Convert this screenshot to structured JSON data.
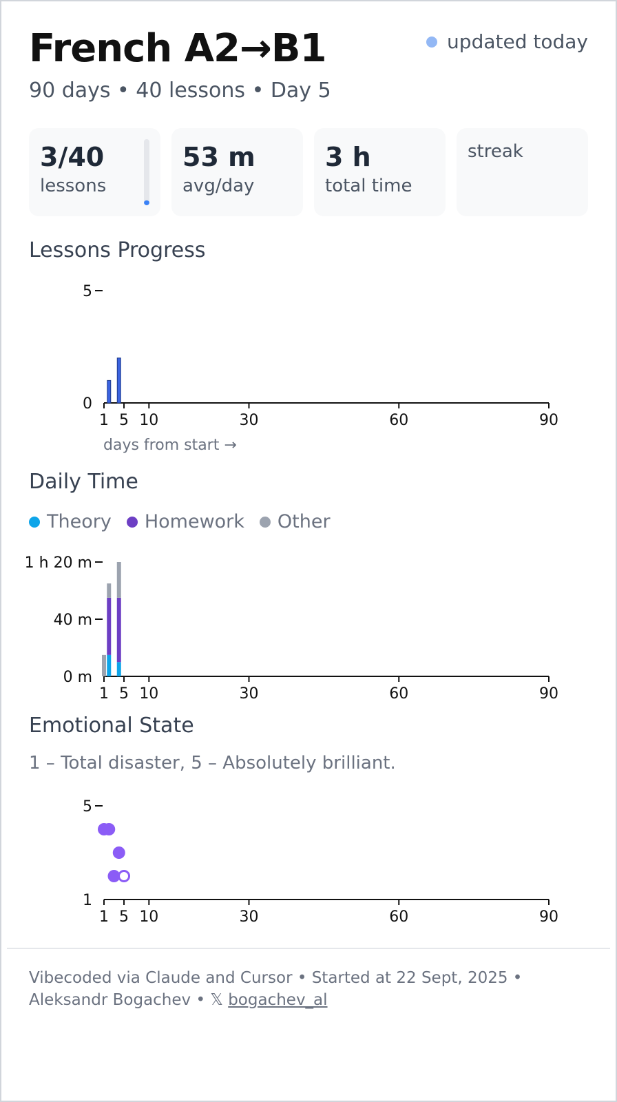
{
  "header": {
    "title": "French A2→B1",
    "subtitle": "90 days • 40 lessons • Day 5",
    "status": "updated today",
    "status_color": "#93b8f5"
  },
  "stats": {
    "lessons_value": "3/40",
    "lessons_label": "lessons",
    "lessons_progress": 0.075,
    "avg_value": "53 m",
    "avg_label": "avg/day",
    "total_value": "3 h",
    "total_label": "total time",
    "streak_label": "streak"
  },
  "sections": {
    "lessons_title": "Lessons Progress",
    "daily_title": "Daily Time",
    "emotion_title": "Emotional State",
    "emotion_note": "1 – Total disaster, 5 – Absolutely brilliant."
  },
  "legend": [
    {
      "label": "Theory",
      "color": "#0ea5e9"
    },
    {
      "label": "Homework",
      "color": "#6d3fc4"
    },
    {
      "label": "Other",
      "color": "#9ca3af"
    }
  ],
  "chart_data": [
    {
      "type": "bar",
      "x_ticks": [
        1,
        5,
        10,
        30,
        60,
        90
      ],
      "xlim": [
        1,
        90
      ],
      "y_ticks": [
        "0",
        "5"
      ],
      "ylim": [
        0,
        5
      ],
      "xlabel": "days from start →",
      "x": [
        2,
        4
      ],
      "values": [
        1,
        2
      ],
      "color": "#3b63e0"
    },
    {
      "type": "bar",
      "stacked": true,
      "x_ticks": [
        1,
        5,
        10,
        30,
        60,
        90
      ],
      "xlim": [
        1,
        90
      ],
      "y_ticks": [
        "0 m",
        "40 m",
        "1 h 20 m"
      ],
      "ylim": [
        0,
        80
      ],
      "x": [
        1,
        2,
        4
      ],
      "series": [
        {
          "name": "Theory",
          "values": [
            0,
            15,
            10
          ]
        },
        {
          "name": "Homework",
          "values": [
            0,
            40,
            45
          ]
        },
        {
          "name": "Other",
          "values": [
            15,
            10,
            25
          ]
        }
      ]
    },
    {
      "type": "scatter",
      "x_ticks": [
        1,
        5,
        10,
        30,
        60,
        90
      ],
      "xlim": [
        1,
        90
      ],
      "y_ticks": [
        "1",
        "5"
      ],
      "ylim": [
        1,
        5
      ],
      "points": [
        {
          "x": 1,
          "y": 4,
          "filled": true
        },
        {
          "x": 2,
          "y": 4,
          "filled": true
        },
        {
          "x": 3,
          "y": 2,
          "filled": true
        },
        {
          "x": 4,
          "y": 3,
          "filled": true
        },
        {
          "x": 5,
          "y": 2,
          "filled": false
        }
      ],
      "color": "#8b5cf6"
    }
  ],
  "footer": {
    "line1": "Vibecoded via Claude and Cursor • Started at 22 Sept, 2025 •",
    "author": "Aleksandr Bogachev",
    "sep": " • ",
    "x_symbol": "𝕏",
    "handle": "bogachev_al"
  }
}
